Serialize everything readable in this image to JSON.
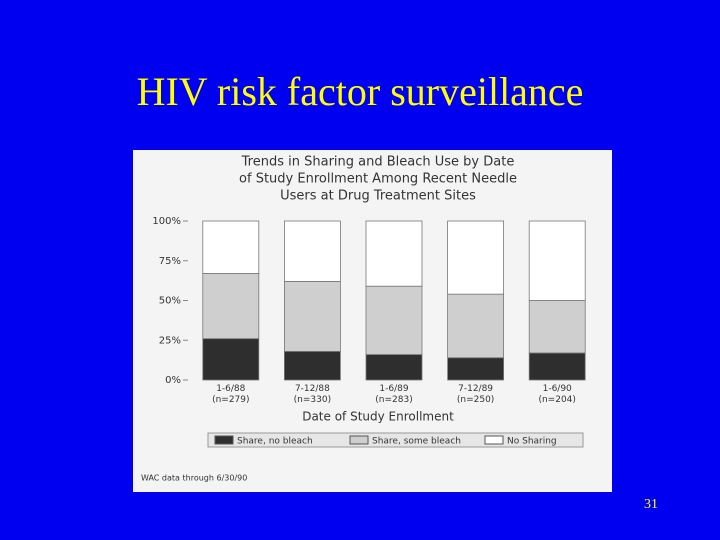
{
  "slide": {
    "title": "HIV risk factor surveillance",
    "page_number": "31"
  },
  "chart_data": {
    "type": "stacked_bar",
    "title_lines": [
      "Trends in Sharing and Bleach Use by Date",
      "of Study Enrollment Among Recent Needle",
      "Users at Drug Treatment Sites"
    ],
    "x_label": "Date of Study Enrollment",
    "footnote": "WAC data through 6/30/90",
    "categories": [
      "1-6/88 (n=279)",
      "7-12/88 (n=330)",
      "1-6/89 (n=283)",
      "7-12/89 (n=250)",
      "1-6/90 (n=204)"
    ],
    "series": [
      {
        "name": "Share, no bleach",
        "color": "#2e2e2e",
        "values": [
          26,
          18,
          16,
          14,
          17
        ]
      },
      {
        "name": "Share, some bleach",
        "color": "#cfcfcf",
        "values": [
          41,
          44,
          43,
          40,
          33
        ]
      },
      {
        "name": "No Sharing",
        "color": "#ffffff",
        "values": [
          33,
          38,
          41,
          46,
          50
        ]
      }
    ],
    "ylim": [
      0,
      100
    ],
    "yticks": [
      {
        "value": 0,
        "label": "0%"
      },
      {
        "value": 25,
        "label": "25%"
      },
      {
        "value": 50,
        "label": "50%"
      },
      {
        "value": 75,
        "label": "75%"
      },
      {
        "value": 100,
        "label": "100%"
      }
    ]
  }
}
